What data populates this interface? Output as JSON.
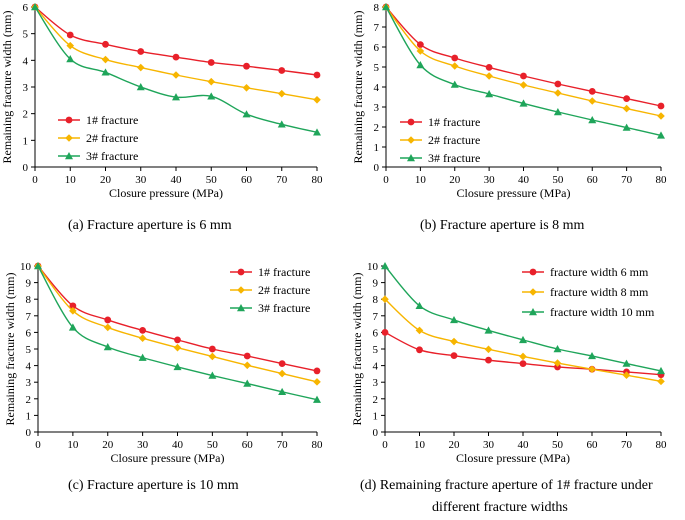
{
  "colors": {
    "red": "#e8202a",
    "orange": "#f7b500",
    "green": "#1fa55a"
  },
  "chart_data": [
    {
      "type": "line",
      "caption": "(a) Fracture aperture is 6 mm",
      "xlabel": "Closure pressure (MPa)",
      "ylabel": "Remaining fracture width (mm)",
      "xlim": [
        0,
        80
      ],
      "ylim": [
        0,
        6
      ],
      "xticks": [
        0,
        10,
        20,
        30,
        40,
        50,
        60,
        70,
        80
      ],
      "yticks": [
        0,
        1,
        2,
        3,
        4,
        5,
        6
      ],
      "x": [
        0,
        10,
        20,
        30,
        40,
        50,
        60,
        70,
        80
      ],
      "legend_position": "bottom-left",
      "series": [
        {
          "name": "1# fracture",
          "color": "#e8202a",
          "marker": "circle",
          "values": [
            6.0,
            4.95,
            4.6,
            4.33,
            4.12,
            3.92,
            3.78,
            3.62,
            3.45
          ]
        },
        {
          "name": "2# fracture",
          "color": "#f7b500",
          "marker": "diamond",
          "values": [
            6.0,
            4.55,
            4.03,
            3.73,
            3.45,
            3.2,
            2.97,
            2.75,
            2.52
          ]
        },
        {
          "name": "3# fracture",
          "color": "#1fa55a",
          "marker": "triangle",
          "values": [
            6.0,
            4.05,
            3.55,
            3.0,
            2.62,
            2.65,
            1.98,
            1.6,
            1.3
          ]
        }
      ]
    },
    {
      "type": "line",
      "caption": "(b) Fracture aperture is 8 mm",
      "xlabel": "Closure pressure (MPa)",
      "ylabel": "Remaining fracture width (mm)",
      "xlim": [
        0,
        80
      ],
      "ylim": [
        0,
        8
      ],
      "xticks": [
        0,
        10,
        20,
        30,
        40,
        50,
        60,
        70,
        80
      ],
      "yticks": [
        0,
        1,
        2,
        3,
        4,
        5,
        6,
        7,
        8
      ],
      "x": [
        0,
        10,
        20,
        30,
        40,
        50,
        60,
        70,
        80
      ],
      "legend_position": "bottom-left",
      "series": [
        {
          "name": "1# fracture",
          "color": "#e8202a",
          "marker": "circle",
          "values": [
            8.0,
            6.12,
            5.45,
            4.98,
            4.55,
            4.15,
            3.78,
            3.42,
            3.05
          ]
        },
        {
          "name": "2# fracture",
          "color": "#f7b500",
          "marker": "diamond",
          "values": [
            8.0,
            5.8,
            5.05,
            4.55,
            4.1,
            3.7,
            3.3,
            2.92,
            2.55
          ]
        },
        {
          "name": "3# fracture",
          "color": "#1fa55a",
          "marker": "triangle",
          "values": [
            8.0,
            5.1,
            4.12,
            3.65,
            3.18,
            2.75,
            2.35,
            1.97,
            1.58
          ]
        }
      ]
    },
    {
      "type": "line",
      "caption": "(c) Fracture aperture is 10 mm",
      "xlabel": "Closure pressure (MPa)",
      "ylabel": "Remaining fracture width (mm)",
      "xlim": [
        0,
        80
      ],
      "ylim": [
        0,
        10
      ],
      "xticks": [
        0,
        10,
        20,
        30,
        40,
        50,
        60,
        70,
        80
      ],
      "yticks": [
        0,
        1,
        2,
        3,
        4,
        5,
        6,
        7,
        8,
        9,
        10
      ],
      "x": [
        0,
        10,
        20,
        30,
        40,
        50,
        60,
        70,
        80
      ],
      "legend_position": "top-right",
      "series": [
        {
          "name": "1# fracture",
          "color": "#e8202a",
          "marker": "circle",
          "values": [
            10.0,
            7.6,
            6.75,
            6.12,
            5.55,
            5.0,
            4.58,
            4.12,
            3.68
          ]
        },
        {
          "name": "2# fracture",
          "color": "#f7b500",
          "marker": "diamond",
          "values": [
            10.0,
            7.3,
            6.3,
            5.65,
            5.08,
            4.55,
            4.02,
            3.52,
            3.02
          ]
        },
        {
          "name": "3# fracture",
          "color": "#1fa55a",
          "marker": "triangle",
          "values": [
            10.0,
            6.3,
            5.12,
            4.48,
            3.92,
            3.4,
            2.92,
            2.42,
            1.95
          ]
        }
      ]
    },
    {
      "type": "line",
      "caption": "(d) Remaining fracture aperture of 1# fracture under",
      "caption_line2": "different fracture widths",
      "xlabel": "Closure pressure (MPa)",
      "ylabel": "Remaining fracture width (mm)",
      "xlim": [
        0,
        80
      ],
      "ylim": [
        0,
        10
      ],
      "xticks": [
        0,
        10,
        20,
        30,
        40,
        50,
        60,
        70,
        80
      ],
      "yticks": [
        0,
        1,
        2,
        3,
        4,
        5,
        6,
        7,
        8,
        9,
        10
      ],
      "x": [
        0,
        10,
        20,
        30,
        40,
        50,
        60,
        70,
        80
      ],
      "legend_position": "top-right",
      "series": [
        {
          "name": "fracture width 6 mm",
          "color": "#e8202a",
          "marker": "circle",
          "values": [
            6.0,
            4.95,
            4.6,
            4.33,
            4.12,
            3.92,
            3.78,
            3.62,
            3.45
          ]
        },
        {
          "name": "fracture width 8 mm",
          "color": "#f7b500",
          "marker": "diamond",
          "values": [
            8.0,
            6.12,
            5.45,
            4.98,
            4.55,
            4.15,
            3.78,
            3.42,
            3.05
          ]
        },
        {
          "name": "fracture width 10 mm",
          "color": "#1fa55a",
          "marker": "triangle",
          "values": [
            10.0,
            7.6,
            6.75,
            6.12,
            5.55,
            5.0,
            4.58,
            4.12,
            3.68
          ]
        }
      ]
    }
  ]
}
